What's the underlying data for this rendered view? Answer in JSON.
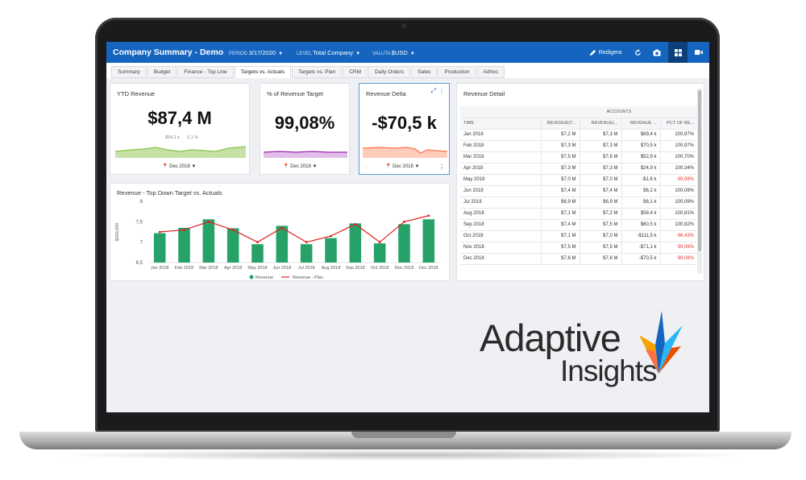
{
  "header": {
    "title": "Company Summary - Demo",
    "period_label": "PERIOD",
    "period_value": "3/17/2020",
    "level_label": "LEVEL",
    "level_value": "Total Company",
    "currency_label": "VALUTA",
    "currency_value": "$USD",
    "edit_label": "Redigera"
  },
  "tabs": [
    {
      "label": "Summary"
    },
    {
      "label": "Budget"
    },
    {
      "label": "Finance - Top Line"
    },
    {
      "label": "Targets vs. Actuals"
    },
    {
      "label": "Targets vs. Plan"
    },
    {
      "label": "CRM"
    },
    {
      "label": "Daily Orders"
    },
    {
      "label": "Sales"
    },
    {
      "label": "Production"
    },
    {
      "label": "Adhoc"
    }
  ],
  "kpis": {
    "ytd": {
      "title": "YTD Revenue",
      "value": "$87,4 M",
      "sub1": "$94,1 k",
      "sub2": "0,1 %",
      "period": "Dec 2018"
    },
    "pct": {
      "title": "% of Revenue Target",
      "value": "99,08%",
      "period": "Dec 2018"
    },
    "delta": {
      "title": "Revenue Delta",
      "value": "-$70,5 k",
      "period": "Dec 2018"
    }
  },
  "chart_data": {
    "type": "bar",
    "title": "Revenue - Top Down Target vs. Actuals",
    "ylabel": "$000,000",
    "ylim": [
      6.5,
      8
    ],
    "yticks": [
      "8",
      "7,5",
      "7",
      "6,5"
    ],
    "categories": [
      "Jan 2018",
      "Feb 2018",
      "Mar 2018",
      "Apr 2018",
      "May 2018",
      "Jun 2018",
      "Jul 2018",
      "Aug 2018",
      "Sep 2018",
      "Oct 2018",
      "Nov 2018",
      "Dec 2018"
    ],
    "series": [
      {
        "name": "Revenue",
        "type": "bar",
        "color": "#26a269",
        "values": [
          7.22,
          7.35,
          7.56,
          7.34,
          6.95,
          7.4,
          6.95,
          7.1,
          7.46,
          6.97,
          7.44,
          7.56
        ]
      },
      {
        "name": "Revenue - Plan",
        "type": "line",
        "color": "#e02020",
        "values": [
          7.25,
          7.3,
          7.5,
          7.3,
          7.0,
          7.35,
          7.0,
          7.15,
          7.44,
          7.0,
          7.5,
          7.65
        ]
      }
    ],
    "legend": "bottom"
  },
  "table": {
    "title": "Revenue Detail",
    "group_header": "ACCOUNTS",
    "row_header": "TIME",
    "columns": [
      "REVENUE(T...",
      "REVENUE(...",
      "REVENUE ...",
      "PCT OF RE..."
    ],
    "rows": [
      {
        "time": "Jan 2018",
        "c1": "$7,2 M",
        "c2": "$7,3 M",
        "c3": "$69,4 k",
        "c4": "100,97%",
        "neg": false
      },
      {
        "time": "Feb 2018",
        "c1": "$7,3 M",
        "c2": "$7,3 M",
        "c3": "$70,5 k",
        "c4": "100,97%",
        "neg": false
      },
      {
        "time": "Mar 2018",
        "c1": "$7,5 M",
        "c2": "$7,6 M",
        "c3": "$52,9 k",
        "c4": "100,70%",
        "neg": false
      },
      {
        "time": "Apr 2018",
        "c1": "$7,3 M",
        "c2": "$7,3 M",
        "c3": "$24,9 k",
        "c4": "100,34%",
        "neg": false
      },
      {
        "time": "May 2018",
        "c1": "$7,0 M",
        "c2": "$7,0 M",
        "c3": "-$1,6 k",
        "c4": "99,98%",
        "neg": true
      },
      {
        "time": "Jun 2018",
        "c1": "$7,4 M",
        "c2": "$7,4 M",
        "c3": "$6,2 k",
        "c4": "100,08%",
        "neg": false
      },
      {
        "time": "Jul 2018",
        "c1": "$6,9 M",
        "c2": "$6,9 M",
        "c3": "$6,1 k",
        "c4": "100,09%",
        "neg": false
      },
      {
        "time": "Aug 2018",
        "c1": "$7,1 M",
        "c2": "$7,2 M",
        "c3": "$58,4 k",
        "c4": "100,81%",
        "neg": false
      },
      {
        "time": "Sep 2018",
        "c1": "$7,4 M",
        "c2": "$7,5 M",
        "c3": "$60,5 k",
        "c4": "100,82%",
        "neg": false
      },
      {
        "time": "Oct 2018",
        "c1": "$7,1 M",
        "c2": "$7,0 M",
        "c3": "-$111,5 k",
        "c4": "98,43%",
        "neg": true
      },
      {
        "time": "Nov 2018",
        "c1": "$7,5 M",
        "c2": "$7,5 M",
        "c3": "-$71,1 k",
        "c4": "99,06%",
        "neg": true
      },
      {
        "time": "Dec 2018",
        "c1": "$7,6 M",
        "c2": "$7,6 M",
        "c3": "-$70,5 k",
        "c4": "99,08%",
        "neg": true
      }
    ]
  },
  "logo": {
    "line1": "Adaptive",
    "line2": "Insights"
  },
  "colors": {
    "brand": "#1565c0",
    "bar": "#26a269",
    "plan_line": "#e02020",
    "negative": "#e53935",
    "spark_green": "#8bc34a",
    "spark_purple": "#9c27b0",
    "spark_orange": "#ff7043"
  }
}
